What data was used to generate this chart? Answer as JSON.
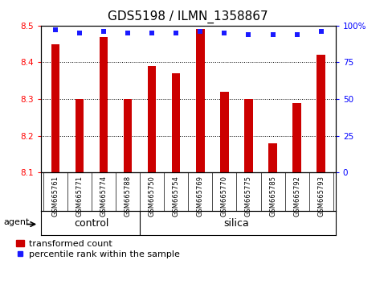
{
  "title": "GDS5198 / ILMN_1358867",
  "samples": [
    "GSM665761",
    "GSM665771",
    "GSM665774",
    "GSM665788",
    "GSM665750",
    "GSM665754",
    "GSM665769",
    "GSM665770",
    "GSM665775",
    "GSM665785",
    "GSM665792",
    "GSM665793"
  ],
  "bar_values": [
    8.45,
    8.3,
    8.47,
    8.3,
    8.39,
    8.37,
    8.49,
    8.32,
    8.3,
    8.18,
    8.29,
    8.42
  ],
  "percentile_values": [
    97,
    95,
    96,
    95,
    95,
    95,
    96,
    95,
    94,
    94,
    94,
    96
  ],
  "bar_bottom": 8.1,
  "ylim_left": [
    8.1,
    8.5
  ],
  "ylim_right": [
    0,
    100
  ],
  "yticks_left": [
    8.1,
    8.2,
    8.3,
    8.4,
    8.5
  ],
  "yticks_right": [
    0,
    25,
    50,
    75,
    100
  ],
  "bar_color": "#cc0000",
  "dot_color": "#1a1aff",
  "control_count": 4,
  "control_label": "control",
  "silica_label": "silica",
  "agent_label": "agent",
  "legend_bar_label": "transformed count",
  "legend_dot_label": "percentile rank within the sample",
  "plot_bg": "#ffffff",
  "tick_bg": "#d3d3d3",
  "group_bg": "#7dda58",
  "bar_width": 0.35,
  "title_fontsize": 11,
  "tick_fontsize": 7.5,
  "sample_fontsize": 6,
  "legend_fontsize": 8,
  "group_fontsize": 9
}
